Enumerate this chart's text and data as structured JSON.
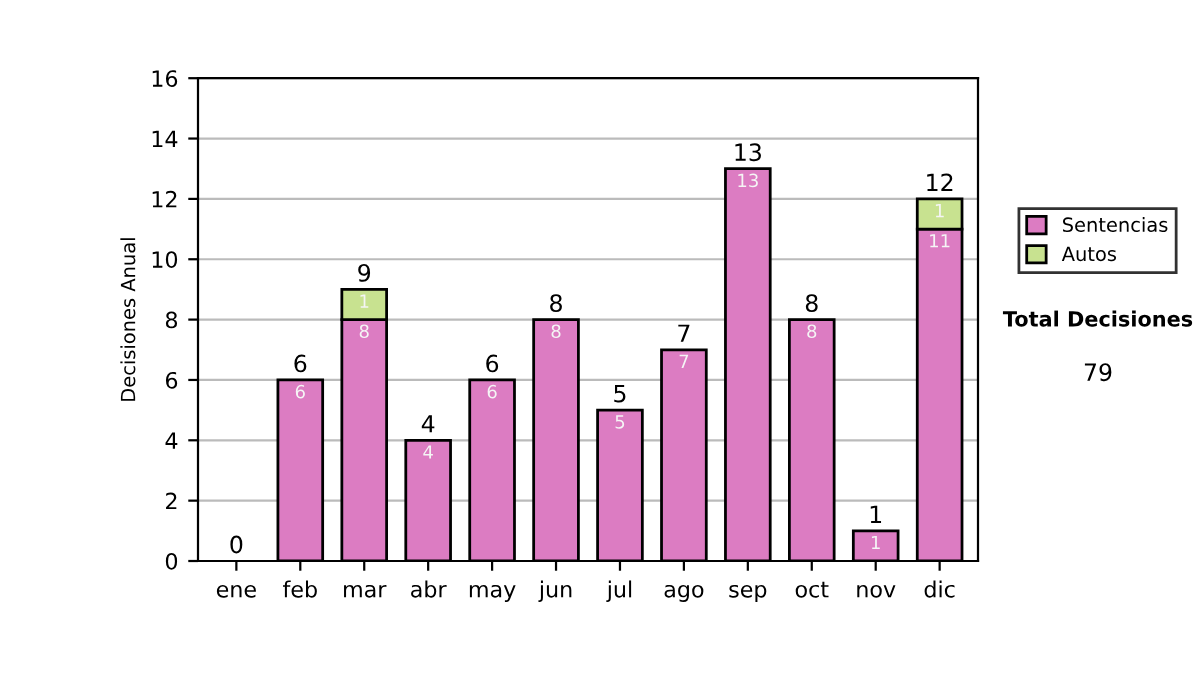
{
  "chart_data": {
    "type": "bar",
    "stacked": true,
    "ylabel": "Decisiones Anual",
    "categories": [
      "ene",
      "feb",
      "mar",
      "abr",
      "may",
      "jun",
      "jul",
      "ago",
      "sep",
      "oct",
      "nov",
      "dic"
    ],
    "series": [
      {
        "name": "Sentencias",
        "color": "#dc7cc2",
        "values": [
          0,
          6,
          8,
          4,
          6,
          8,
          5,
          7,
          13,
          8,
          1,
          11
        ],
        "value_labels": [
          null,
          "6",
          "8",
          "4",
          "6",
          "8",
          "5",
          "7",
          "13",
          "8",
          "1",
          "11"
        ]
      },
      {
        "name": "Autos",
        "color": "#c8e290",
        "values": [
          null,
          null,
          1,
          null,
          null,
          null,
          null,
          null,
          null,
          null,
          null,
          1
        ],
        "value_labels": [
          null,
          null,
          "1",
          null,
          null,
          null,
          null,
          null,
          null,
          null,
          null,
          "1"
        ]
      }
    ],
    "totals": [
      "0",
      "6",
      "9",
      "4",
      "6",
      "8",
      "5",
      "7",
      "13",
      "8",
      "1",
      "12"
    ],
    "ylim": [
      0,
      16
    ],
    "yticks": [
      0,
      2,
      4,
      6,
      8,
      10,
      12,
      14,
      16
    ],
    "grid": "y",
    "legend": "right",
    "annotations": [
      "Total Decisiones",
      "79"
    ]
  }
}
